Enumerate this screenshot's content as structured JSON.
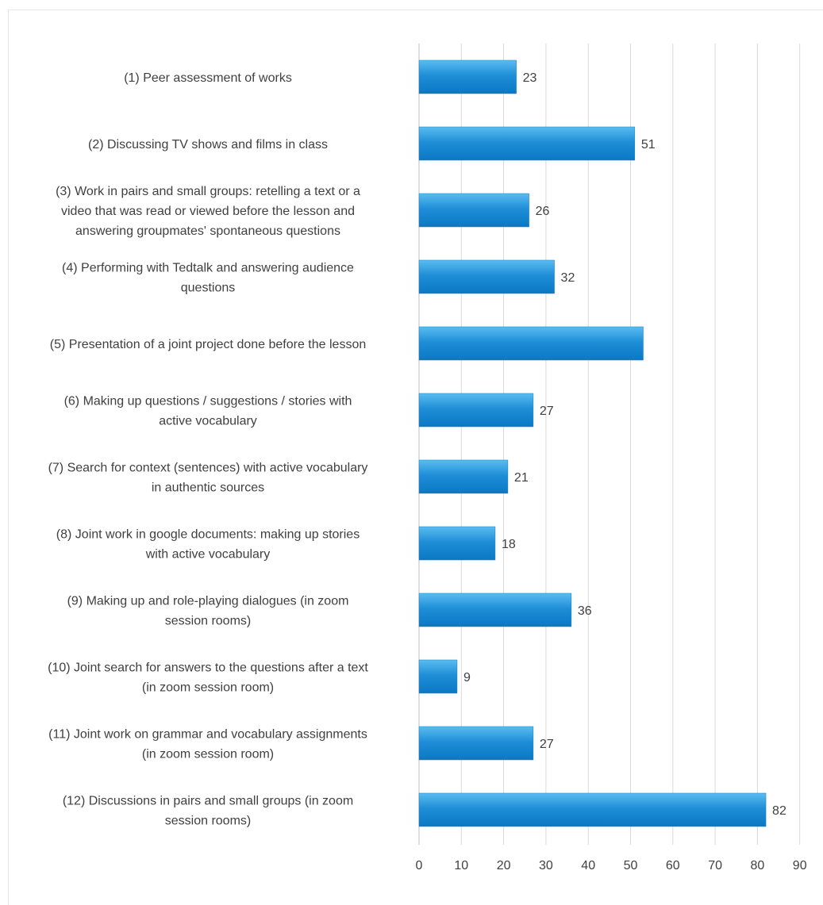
{
  "chart_data": {
    "type": "bar",
    "orientation": "horizontal",
    "title": "",
    "xlabel": "",
    "ylabel": "",
    "xlim": [
      0,
      90
    ],
    "ticks": [
      0,
      10,
      20,
      30,
      40,
      50,
      60,
      70,
      80,
      90
    ],
    "grid": "vertical",
    "legend": "none",
    "bar_color": "#1f8fd8",
    "bar_color_light": "#5bbcf0",
    "categories": [
      [
        "(1) Peer assessment of works"
      ],
      [
        "(2) Discussing TV shows and films in class"
      ],
      [
        "(3) Work in pairs and small groups: retelling a text or a",
        "video that was read or viewed before the lesson and",
        "answering groupmates' spontaneous questions"
      ],
      [
        "(4) Performing with Tedtalk and answering audience",
        "questions"
      ],
      [
        "(5) Presentation of a joint project done before the lesson"
      ],
      [
        "(6) Making up questions / suggestions / stories with",
        "active vocabulary"
      ],
      [
        "(7) Search for context (sentences) with active vocabulary",
        "in authentic sources"
      ],
      [
        "(8) Joint work in google documents: making up stories",
        "with active vocabulary"
      ],
      [
        "(9) Making up and role-playing dialogues (in zoom",
        "session rooms)"
      ],
      [
        "(10) Joint search for answers to the questions after a text",
        "(in zoom session room)"
      ],
      [
        "(11) Joint work on grammar and vocabulary assignments",
        "(in zoom session room)"
      ],
      [
        "(12) Discussions in pairs and small groups (in zoom",
        "session rooms)"
      ]
    ],
    "values": [
      23,
      51,
      26,
      32,
      53,
      27,
      21,
      18,
      36,
      9,
      27,
      82
    ],
    "data_labels": [
      "23",
      "51",
      "26",
      "32",
      "",
      "27",
      "21",
      "18",
      "36",
      "9",
      "27",
      "82"
    ]
  }
}
